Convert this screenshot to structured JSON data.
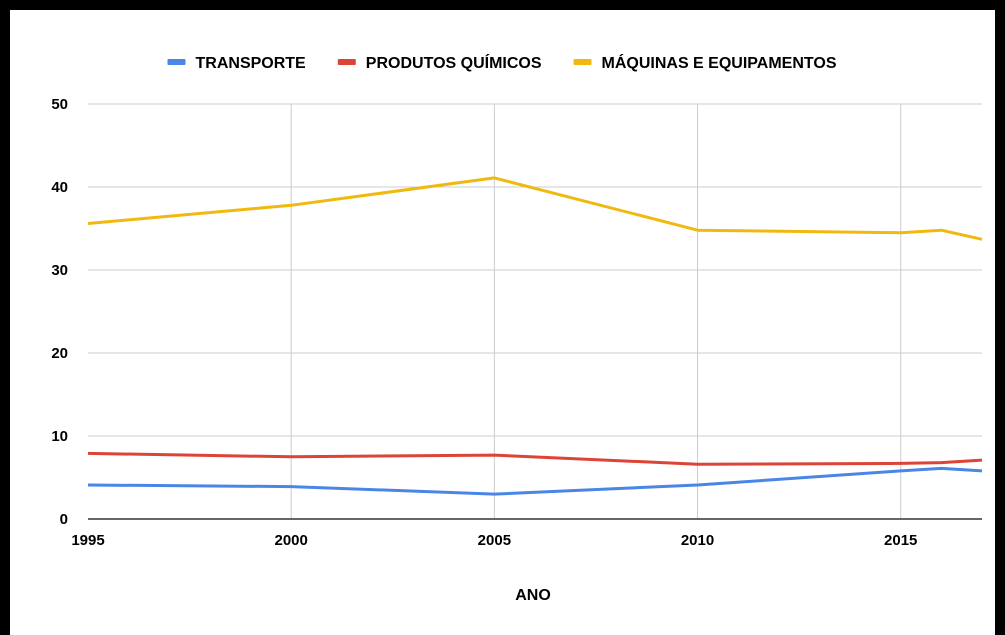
{
  "chart_data": {
    "type": "line",
    "title": "",
    "xlabel": "ANO",
    "ylabel": "",
    "xlim": [
      1995,
      2017
    ],
    "ylim": [
      0,
      50
    ],
    "x_ticks": [
      1995,
      2000,
      2005,
      2010,
      2015
    ],
    "y_ticks": [
      0,
      10,
      20,
      30,
      40,
      50
    ],
    "grid": true,
    "legend_position": "top",
    "x": [
      1995,
      2000,
      2005,
      2010,
      2015,
      2016,
      2017
    ],
    "series": [
      {
        "name": "TRANSPORTE",
        "color": "#4a86e8",
        "values": [
          4.1,
          3.9,
          3.0,
          4.1,
          5.8,
          6.1,
          5.8
        ]
      },
      {
        "name": "PRODUTOS QUÍMICOS",
        "color": "#db4437",
        "values": [
          7.9,
          7.5,
          7.7,
          6.6,
          6.7,
          6.8,
          7.1
        ]
      },
      {
        "name": "MÁQUINAS E EQUIPAMENTOS",
        "color": "#f1b90f",
        "values": [
          35.6,
          37.8,
          41.1,
          34.8,
          34.5,
          34.8,
          33.7
        ]
      }
    ]
  }
}
